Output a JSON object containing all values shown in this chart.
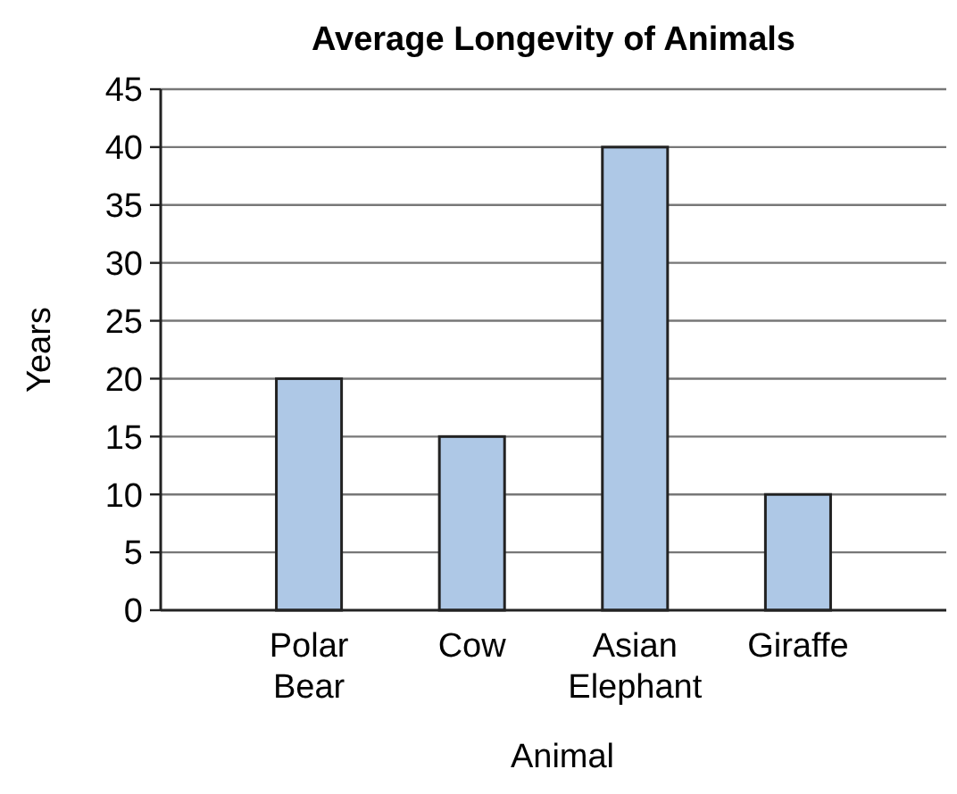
{
  "chart_data": {
    "type": "bar",
    "title": "Average Longevity of Animals",
    "xlabel": "Animal",
    "ylabel": "Years",
    "categories": [
      "Polar Bear",
      "Cow",
      "Asian Elephant",
      "Giraffe"
    ],
    "values": [
      20,
      15,
      40,
      10
    ],
    "color": "#aec8e6",
    "ylim": [
      0,
      45
    ],
    "yticks": [
      0,
      5,
      10,
      15,
      20,
      25,
      30,
      35,
      40,
      45
    ],
    "grid": "y"
  }
}
